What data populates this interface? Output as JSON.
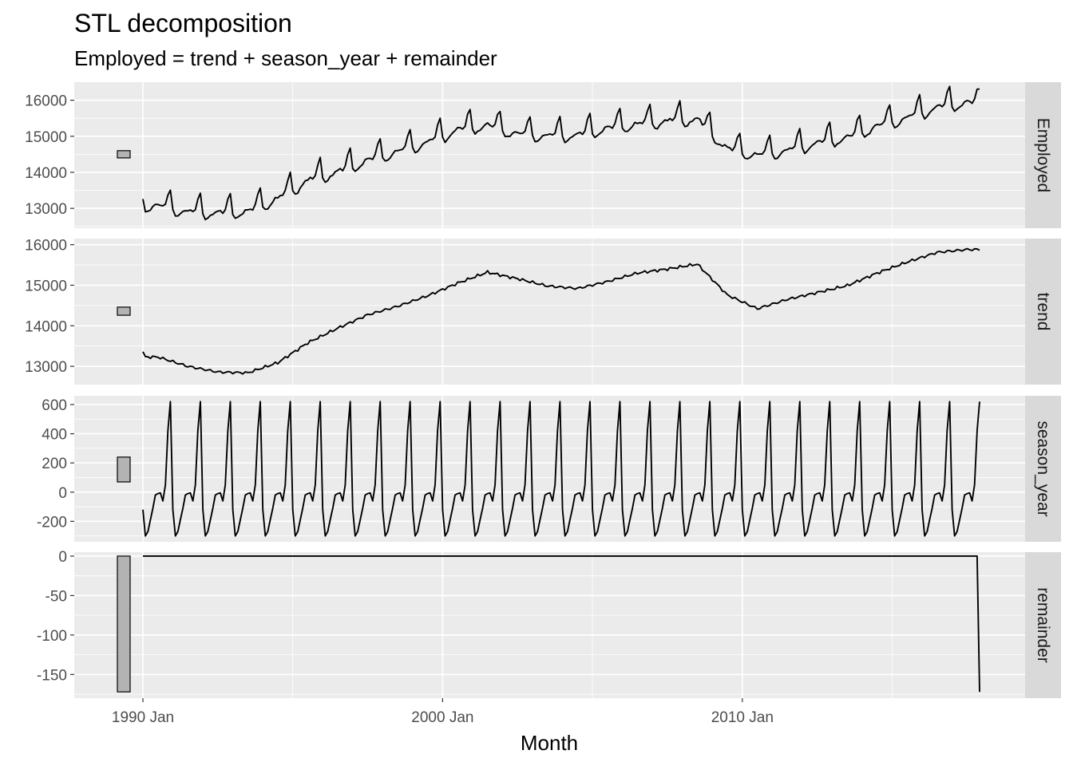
{
  "title": "STL decomposition",
  "subtitle": "Employed = trend + season_year + remainder",
  "chart_data": {
    "type": "line",
    "title": "STL decomposition",
    "subtitle": "Employed = trend + season_year + remainder",
    "xlabel": "Month",
    "x_range": [
      "1990 Jan",
      "2017 Dec"
    ],
    "x_ticks": [
      "1990 Jan",
      "2000 Jan",
      "2010 Jan"
    ],
    "grid": true,
    "panels": [
      {
        "name": "Employed",
        "ylim": [
          12450,
          16500
        ],
        "yticks": [
          13000,
          14000,
          15000,
          16000
        ],
        "scale_bar": [
          14400,
          14600
        ],
        "annual_means": [
          13120,
          12950,
          12920,
          12960,
          13320,
          13820,
          14060,
          14380,
          14620,
          14880,
          15230,
          15350,
          15110,
          15060,
          15080,
          15270,
          15380,
          15470,
          15520,
          14700,
          14520,
          14650,
          14860,
          15010,
          15330,
          15560,
          15850,
          15980
        ],
        "first_value": 13260,
        "last_value": 16310
      },
      {
        "name": "trend",
        "ylim": [
          12550,
          16150
        ],
        "yticks": [
          13000,
          14000,
          15000,
          16000
        ],
        "scale_bar": [
          14260,
          14460
        ],
        "annual_means": [
          13230,
          13000,
          12860,
          12840,
          13090,
          13580,
          13940,
          14270,
          14480,
          14740,
          15050,
          15320,
          15160,
          14980,
          14920,
          15090,
          15300,
          15400,
          15520,
          14760,
          14420,
          14650,
          14820,
          14990,
          15300,
          15570,
          15810,
          15880
        ],
        "first_value": 13360,
        "last_value": 15860
      },
      {
        "name": "season_year",
        "ylim": [
          -340,
          660
        ],
        "yticks": [
          -200,
          0,
          200,
          400,
          600
        ],
        "scale_bar": [
          70,
          240
        ],
        "monthly_pattern": [
          -120,
          -300,
          -270,
          -190,
          -110,
          -20,
          -10,
          -5,
          -60,
          50,
          420,
          620
        ]
      },
      {
        "name": "remainder",
        "ylim": [
          -180,
          5
        ],
        "yticks": [
          -150,
          -100,
          -50,
          0
        ],
        "scale_bar": [
          -172,
          0
        ],
        "value_until_2017_Nov": 0,
        "last_value": -172
      }
    ]
  }
}
